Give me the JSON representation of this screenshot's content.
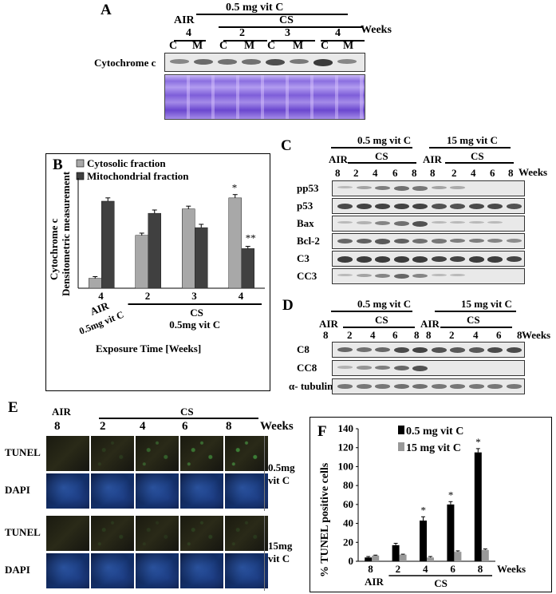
{
  "panelA": {
    "letter": "A",
    "dose": "0.5 mg vit C",
    "air": "AIR",
    "cs": "CS",
    "weeks_label": "Weeks",
    "weeks": [
      "4",
      "2",
      "3",
      "4"
    ],
    "fractions": [
      "C",
      "M",
      "C",
      "M",
      "C",
      "M",
      "C",
      "M"
    ],
    "row_label": "Cytochrome c",
    "band_intensity": [
      0.35,
      0.55,
      0.5,
      0.5,
      0.75,
      0.45,
      0.9,
      0.35
    ]
  },
  "panelB": {
    "letter": "B",
    "ylabel1": "Cytochrome c",
    "ylabel2": "Densitometric measurement",
    "legend": [
      "Cytosolic fraction",
      "Mitochondrial fraction"
    ],
    "xlabels": [
      "4",
      "2",
      "3",
      "4"
    ],
    "air_label": "AIR",
    "air_dose": "0.5mg vit C",
    "cs_label": "CS",
    "cs_dose": "0.5mg vit C",
    "xtitle": "Exposure Time [Weeks]",
    "colors": {
      "cyto": "#a8a8a8",
      "mito": "#404040"
    },
    "stars": [
      "*",
      "**"
    ]
  },
  "chart_data": [
    {
      "type": "bar",
      "categories": [
        "AIR 4",
        "CS 2",
        "CS 3",
        "CS 4"
      ],
      "series": [
        {
          "name": "Cytosolic fraction",
          "values": [
            0.09,
            0.48,
            0.72,
            0.82
          ],
          "errors": [
            0.015,
            0.02,
            0.025,
            0.03
          ]
        },
        {
          "name": "Mitochondrial fraction",
          "values": [
            0.79,
            0.68,
            0.55,
            0.36
          ],
          "errors": [
            0.03,
            0.03,
            0.03,
            0.02
          ]
        }
      ],
      "ylabel": "Cytochrome c Densitometric measurement",
      "xlabel": "Exposure Time [Weeks]",
      "ylim": [
        0,
        1
      ],
      "annotations": [
        {
          "bar": "Cytosolic fraction, CS 4",
          "text": "*"
        },
        {
          "bar": "Mitochondrial fraction, CS 4",
          "text": "**"
        }
      ]
    },
    {
      "type": "bar",
      "categories": [
        "AIR 8",
        "CS 2",
        "CS 4",
        "CS 6",
        "CS 8"
      ],
      "series": [
        {
          "name": "0.5 mg vit C",
          "values": [
            4,
            17,
            43,
            60,
            115
          ],
          "errors": [
            1,
            2,
            4,
            3,
            4
          ]
        },
        {
          "name": "15 mg vit C",
          "values": [
            6,
            7,
            4,
            10,
            12
          ],
          "errors": [
            0.5,
            0.5,
            1,
            1,
            1
          ]
        }
      ],
      "ylabel": "% TUNEL positive cells",
      "xlabel": "Weeks",
      "ylim": [
        0,
        140
      ],
      "yticks": [
        0,
        20,
        40,
        60,
        80,
        100,
        120,
        140
      ],
      "annotations": [
        {
          "category": "CS 4",
          "text": "*"
        },
        {
          "category": "CS 6",
          "text": "*"
        },
        {
          "category": "CS 8",
          "text": "*"
        }
      ]
    }
  ],
  "panelC": {
    "letter": "C",
    "dose1": "0.5 mg vit C",
    "dose2": "15 mg vit C",
    "air": "AIR",
    "cs": "CS",
    "weeks_label": "Weeks",
    "weeks": [
      "8",
      "2",
      "4",
      "6",
      "8",
      "8",
      "2",
      "4",
      "6",
      "8"
    ],
    "rows": [
      "pp53",
      "p53",
      "Bax",
      "Bcl-2",
      "C3",
      "CC3"
    ]
  },
  "panelD": {
    "letter": "D",
    "dose1": "0.5 mg vit C",
    "dose2": "15 mg vit C",
    "air": "AIR",
    "cs": "CS",
    "weeks_label": "Weeks",
    "weeks": [
      "8",
      "2",
      "4",
      "6",
      "8",
      "8",
      "2",
      "4",
      "6",
      "8"
    ],
    "rows": [
      "C8",
      "CC8",
      "α- tubulin"
    ]
  },
  "panelE": {
    "letter": "E",
    "air": "AIR",
    "cs": "CS",
    "weeks_label": "Weeks",
    "weeks": [
      "8",
      "2",
      "4",
      "6",
      "8"
    ],
    "rows": [
      "TUNEL",
      "DAPI",
      "TUNEL",
      "DAPI"
    ],
    "dose1a": "0.5mg",
    "dose1b": "vit C",
    "dose2a": "15mg",
    "dose2b": "vit C"
  },
  "panelF": {
    "letter": "F",
    "ylabel": "% TUNEL positive cells",
    "legend": [
      "0.5 mg vit C",
      "15 mg vit C"
    ],
    "xlabels": [
      "8",
      "2",
      "4",
      "6",
      "8"
    ],
    "weeks_label": "Weeks",
    "air_label": "AIR",
    "cs_label": "CS",
    "yticks": [
      "0",
      "20",
      "40",
      "60",
      "80",
      "100",
      "120",
      "140"
    ],
    "colors": {
      "low": "#000000",
      "high": "#999999"
    }
  }
}
